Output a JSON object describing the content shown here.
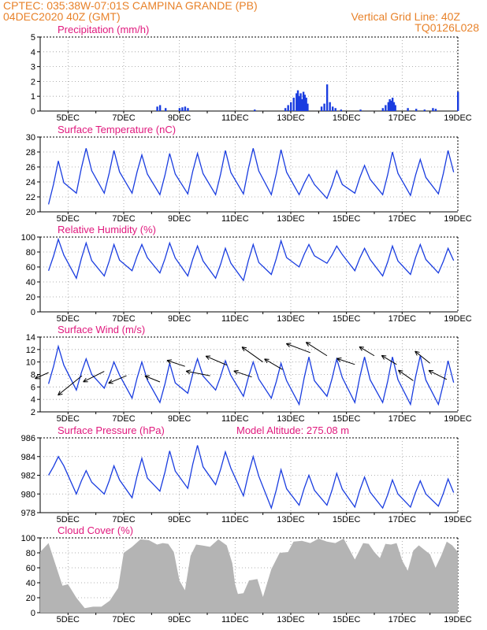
{
  "header": {
    "line1": "CPTEC:   035:38W-07:01S   CAMPINA GRANDE (PB)",
    "line2": "04DEC2020 40Z (GMT)",
    "grid_note": "Vertical Grid Line: 40Z",
    "code": "TQ0126L028"
  },
  "colors": {
    "header": "#e8822a",
    "title": "#e0197d",
    "line": "#1a3de0",
    "bar": "#1a3de0",
    "cloud": "#b4b4b4"
  },
  "chart_data": [
    {
      "id": "precip",
      "type": "bar",
      "title": "Precipitation (mm/h)",
      "ylim": [
        0,
        5
      ],
      "yticks": [
        0,
        1,
        2,
        3,
        4,
        5
      ],
      "x_labels": [
        "5DEC",
        "7DEC",
        "9DEC",
        "11DEC",
        "13DEC",
        "15DEC",
        "17DEC",
        "19DEC"
      ],
      "xlim_days": [
        4,
        19
      ],
      "values": [
        [
          8.2,
          0.3
        ],
        [
          8.3,
          0.4
        ],
        [
          8.5,
          0.2
        ],
        [
          9.0,
          0.2
        ],
        [
          9.1,
          0.25
        ],
        [
          9.2,
          0.3
        ],
        [
          9.3,
          0.2
        ],
        [
          11.7,
          0.1
        ],
        [
          12.8,
          0.2
        ],
        [
          12.9,
          0.4
        ],
        [
          13.0,
          0.6
        ],
        [
          13.1,
          0.9
        ],
        [
          13.2,
          1.2
        ],
        [
          13.25,
          1.4
        ],
        [
          13.3,
          1.0
        ],
        [
          13.35,
          1.2
        ],
        [
          13.4,
          0.8
        ],
        [
          13.45,
          1.3
        ],
        [
          13.5,
          1.1
        ],
        [
          13.55,
          0.9
        ],
        [
          13.6,
          0.5
        ],
        [
          14.1,
          0.3
        ],
        [
          14.2,
          0.5
        ],
        [
          14.3,
          1.8
        ],
        [
          14.4,
          0.6
        ],
        [
          14.5,
          0.3
        ],
        [
          14.6,
          0.2
        ],
        [
          14.8,
          0.1
        ],
        [
          15.5,
          0.1
        ],
        [
          16.3,
          0.2
        ],
        [
          16.4,
          0.4
        ],
        [
          16.5,
          0.6
        ],
        [
          16.55,
          0.8
        ],
        [
          16.6,
          0.7
        ],
        [
          16.65,
          0.9
        ],
        [
          16.7,
          0.6
        ],
        [
          16.75,
          0.4
        ],
        [
          17.2,
          0.2
        ],
        [
          17.5,
          0.15
        ],
        [
          17.8,
          0.1
        ],
        [
          18.1,
          0.2
        ],
        [
          18.2,
          0.15
        ],
        [
          19.0,
          1.3
        ]
      ]
    },
    {
      "id": "temp",
      "type": "line",
      "title": "Surface Temperature (nC)",
      "ylim": [
        20,
        30
      ],
      "yticks": [
        20,
        22,
        24,
        26,
        28,
        30
      ],
      "x_labels": [
        "5DEC",
        "7DEC",
        "9DEC",
        "11DEC",
        "13DEC",
        "15DEC",
        "17DEC",
        "19DEC"
      ],
      "xlim_days": [
        4,
        19
      ],
      "daily_min": [
        21.0,
        22.5,
        22.5,
        22.5,
        22.3,
        22.4,
        22.3,
        22.4,
        22.3,
        22.3,
        21.8,
        22.5,
        22.3,
        22.2,
        22.4,
        22.8
      ],
      "daily_max": [
        26.8,
        28.5,
        28.2,
        27.6,
        27.8,
        27.8,
        28.2,
        28.5,
        28.3,
        25.0,
        25.5,
        26.2,
        28.0,
        27.0,
        28.2,
        27.8
      ]
    },
    {
      "id": "rh",
      "type": "line",
      "title": "Relative Humidity (%)",
      "ylim": [
        0,
        100
      ],
      "yticks": [
        0,
        20,
        40,
        60,
        80,
        100
      ],
      "x_labels": [
        "5DEC",
        "7DEC",
        "9DEC",
        "11DEC",
        "13DEC",
        "15DEC",
        "17DEC",
        "19DEC"
      ],
      "xlim_days": [
        4,
        19
      ],
      "daily_max": [
        97,
        92,
        90,
        90,
        92,
        88,
        85,
        90,
        95,
        90,
        88,
        85,
        88,
        90,
        85,
        80
      ],
      "daily_min": [
        55,
        45,
        48,
        55,
        52,
        48,
        45,
        42,
        50,
        60,
        65,
        55,
        48,
        50,
        52,
        62
      ]
    },
    {
      "id": "wind",
      "type": "line",
      "title": "Surface Wind (m/s)",
      "ylim": [
        2,
        14
      ],
      "yticks": [
        2,
        4,
        6,
        8,
        10,
        12,
        14
      ],
      "x_labels": [
        "5DEC",
        "7DEC",
        "9DEC",
        "11DEC",
        "13DEC",
        "15DEC",
        "17DEC",
        "19DEC"
      ],
      "xlim_days": [
        4,
        19
      ],
      "daily_max": [
        12.5,
        10.5,
        10.0,
        10.0,
        9.8,
        10.5,
        10.2,
        10.0,
        9.8,
        10.8,
        10.5,
        10.8,
        10.8,
        11.0,
        10.2,
        9.8
      ],
      "daily_min": [
        6.5,
        5.5,
        5.8,
        4.2,
        3.5,
        5.0,
        5.5,
        4.5,
        4.2,
        3.2,
        4.5,
        3.5,
        3.5,
        3.2,
        3.2,
        4.0
      ],
      "arrows": [
        [
          4.3,
          8.3,
          -0.45,
          0.2
        ],
        [
          5.5,
          7.8,
          -0.8,
          0.65
        ],
        [
          6.3,
          8.5,
          -0.7,
          0.35
        ],
        [
          7.1,
          7.8,
          -0.6,
          0.25
        ],
        [
          8.3,
          6.8,
          -0.5,
          -0.2
        ],
        [
          9.2,
          9.3,
          -0.6,
          -0.2
        ],
        [
          10.1,
          7.8,
          -0.8,
          -0.15
        ],
        [
          10.7,
          9.5,
          -0.7,
          -0.3
        ],
        [
          11.6,
          7.6,
          -0.6,
          -0.2
        ],
        [
          12.0,
          10.0,
          -0.7,
          -0.5
        ],
        [
          12.7,
          8.8,
          -0.6,
          -0.35
        ],
        [
          13.7,
          11.5,
          -0.8,
          -0.3
        ],
        [
          14.3,
          11.0,
          -0.7,
          -0.45
        ],
        [
          15.3,
          9.6,
          -0.6,
          -0.2
        ],
        [
          16.0,
          11.0,
          -0.5,
          -0.3
        ],
        [
          16.8,
          9.6,
          -0.5,
          -0.3
        ],
        [
          17.4,
          7.0,
          -0.5,
          -0.35
        ],
        [
          18.0,
          9.8,
          -0.5,
          -0.4
        ],
        [
          18.6,
          7.2,
          -0.6,
          -0.3
        ]
      ]
    },
    {
      "id": "pressure",
      "type": "line",
      "title": "Surface Pressure (hPa)",
      "subtitle": "Model Altitude: 275.08 m",
      "ylim": [
        978,
        986
      ],
      "yticks": [
        978,
        980,
        982,
        984,
        986
      ],
      "x_labels": [
        "5DEC",
        "7DEC",
        "9DEC",
        "11DEC",
        "13DEC",
        "15DEC",
        "17DEC",
        "19DEC"
      ],
      "xlim_days": [
        4,
        19
      ],
      "daily_max": [
        984.0,
        982.5,
        983.0,
        983.8,
        984.6,
        985.2,
        984.5,
        984.0,
        982.6,
        982.0,
        982.2,
        981.8,
        981.5,
        981.4,
        981.6,
        980.2
      ],
      "daily_min": [
        982.0,
        980.0,
        980.0,
        979.6,
        980.3,
        980.6,
        981.0,
        979.8,
        978.5,
        978.8,
        978.8,
        978.6,
        978.5,
        978.6,
        978.7,
        978.5
      ]
    },
    {
      "id": "cloud",
      "type": "area",
      "title": "Cloud Cover (%)",
      "ylim": [
        0,
        100
      ],
      "yticks": [
        0,
        20,
        40,
        60,
        80,
        100
      ],
      "x_labels": [
        "5DEC",
        "7DEC",
        "9DEC",
        "11DEC",
        "13DEC",
        "15DEC",
        "17DEC",
        "19DEC"
      ],
      "xlim_days": [
        4,
        19
      ],
      "profile": [
        [
          4.0,
          85
        ],
        [
          4.3,
          90
        ],
        [
          4.5,
          70
        ],
        [
          4.8,
          40
        ],
        [
          5.0,
          35
        ],
        [
          5.3,
          20
        ],
        [
          5.6,
          10
        ],
        [
          5.9,
          5
        ],
        [
          6.2,
          8
        ],
        [
          6.5,
          20
        ],
        [
          6.8,
          30
        ],
        [
          7.0,
          80
        ],
        [
          7.3,
          92
        ],
        [
          7.6,
          95
        ],
        [
          7.9,
          97
        ],
        [
          8.2,
          95
        ],
        [
          8.4,
          90
        ],
        [
          8.6,
          92
        ],
        [
          8.8,
          85
        ],
        [
          9.0,
          40
        ],
        [
          9.2,
          30
        ],
        [
          9.4,
          80
        ],
        [
          9.6,
          88
        ],
        [
          9.8,
          90
        ],
        [
          10.1,
          92
        ],
        [
          10.4,
          95
        ],
        [
          10.7,
          90
        ],
        [
          10.9,
          70
        ],
        [
          11.0,
          35
        ],
        [
          11.1,
          25
        ],
        [
          11.3,
          30
        ],
        [
          11.5,
          40
        ],
        [
          11.8,
          45
        ],
        [
          12.0,
          25
        ],
        [
          12.3,
          55
        ],
        [
          12.6,
          80
        ],
        [
          12.9,
          85
        ],
        [
          13.1,
          92
        ],
        [
          13.4,
          96
        ],
        [
          13.7,
          97
        ],
        [
          14.0,
          96
        ],
        [
          14.3,
          95
        ],
        [
          14.6,
          97
        ],
        [
          14.9,
          96
        ],
        [
          15.1,
          85
        ],
        [
          15.3,
          75
        ],
        [
          15.6,
          90
        ],
        [
          15.8,
          92
        ],
        [
          16.0,
          85
        ],
        [
          16.2,
          70
        ],
        [
          16.4,
          92
        ],
        [
          16.6,
          95
        ],
        [
          16.8,
          90
        ],
        [
          17.0,
          70
        ],
        [
          17.2,
          60
        ],
        [
          17.4,
          80
        ],
        [
          17.6,
          90
        ],
        [
          17.8,
          88
        ],
        [
          18.0,
          75
        ],
        [
          18.2,
          60
        ],
        [
          18.4,
          80
        ],
        [
          18.6,
          92
        ],
        [
          18.8,
          90
        ],
        [
          19.0,
          85
        ]
      ]
    }
  ]
}
